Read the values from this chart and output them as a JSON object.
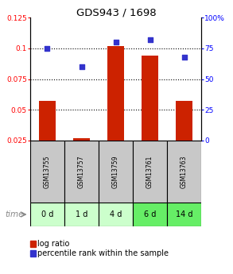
{
  "title": "GDS943 / 1698",
  "samples": [
    "GSM13755",
    "GSM13757",
    "GSM13759",
    "GSM13761",
    "GSM13763"
  ],
  "time_labels": [
    "0 d",
    "1 d",
    "4 d",
    "6 d",
    "14 d"
  ],
  "log_ratio": [
    0.057,
    0.027,
    0.102,
    0.094,
    0.057
  ],
  "percentile_rank": [
    75,
    60,
    80,
    82,
    68
  ],
  "bar_color": "#cc2200",
  "dot_color": "#3333cc",
  "ylim_left": [
    0.025,
    0.125
  ],
  "ylim_right": [
    0,
    100
  ],
  "yticks_left": [
    0.025,
    0.05,
    0.075,
    0.1,
    0.125
  ],
  "ytick_labels_left": [
    "0.025",
    "0.05",
    "0.075",
    "0.1",
    "0.125"
  ],
  "yticks_right": [
    0,
    25,
    50,
    75,
    100
  ],
  "ytick_labels_right": [
    "0",
    "25",
    "50",
    "75",
    "100%"
  ],
  "bg_color": "#ffffff",
  "sample_bg_color": "#c8c8c8",
  "time_bg_colors": [
    "#ccffcc",
    "#ccffcc",
    "#ccffcc",
    "#66ee66",
    "#66ee66"
  ],
  "bar_width": 0.5
}
